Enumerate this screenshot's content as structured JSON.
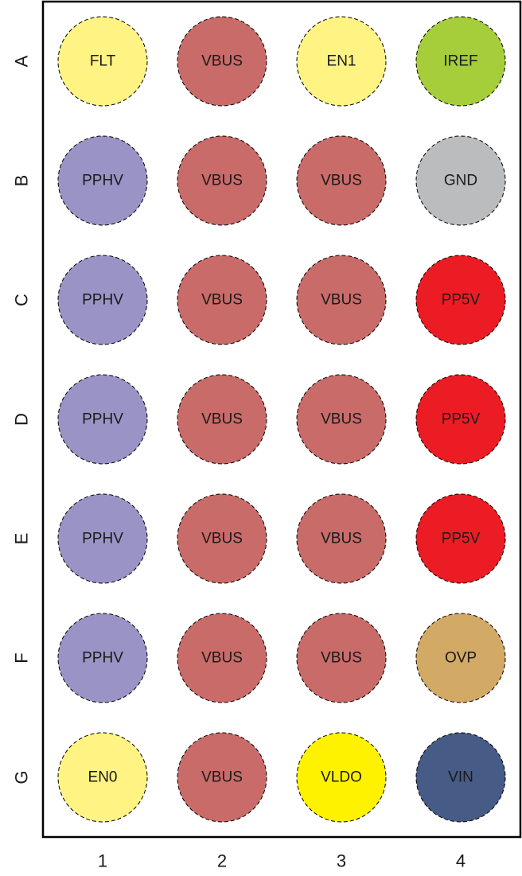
{
  "rows": [
    "A",
    "B",
    "C",
    "D",
    "E",
    "F",
    "G"
  ],
  "columns": [
    "1",
    "2",
    "3",
    "4"
  ],
  "signal_colors": {
    "FLT": "#fff383",
    "EN1": "#fff383",
    "EN0": "#fff383",
    "VBUS": "#c96b69",
    "IREF": "#a6cd3a",
    "PPHV": "#9a94c6",
    "GND": "#babcbe",
    "PP5V": "#ec1c24",
    "OVP": "#d3a966",
    "VLDO": "#fff200",
    "VIN": "#465b85"
  },
  "balls": [
    [
      "FLT",
      "VBUS",
      "EN1",
      "IREF"
    ],
    [
      "PPHV",
      "VBUS",
      "VBUS",
      "GND"
    ],
    [
      "PPHV",
      "VBUS",
      "VBUS",
      "PP5V"
    ],
    [
      "PPHV",
      "VBUS",
      "VBUS",
      "PP5V"
    ],
    [
      "PPHV",
      "VBUS",
      "VBUS",
      "PP5V"
    ],
    [
      "PPHV",
      "VBUS",
      "VBUS",
      "OVP"
    ],
    [
      "EN0",
      "VBUS",
      "VLDO",
      "VIN"
    ]
  ]
}
